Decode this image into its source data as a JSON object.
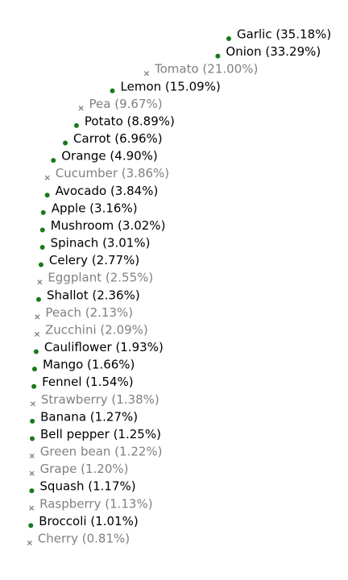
{
  "chart_data": {
    "type": "scatter",
    "title": "",
    "xlabel": "",
    "ylabel": "",
    "grid": false,
    "legend": "none",
    "colors": {
      "active_marker": "#1a7a1a",
      "inactive_marker": "#7f7f7f",
      "active_text": "#000000",
      "inactive_text": "#808080"
    },
    "items": [
      {
        "name": "Garlic",
        "percent_label": "(35.18%)",
        "value": 35.18,
        "marker": "dot"
      },
      {
        "name": "Onion",
        "percent_label": "(33.29%)",
        "value": 33.29,
        "marker": "dot"
      },
      {
        "name": "Tomato",
        "percent_label": "(21.00%)",
        "value": 21.0,
        "marker": "x"
      },
      {
        "name": "Lemon",
        "percent_label": "(15.09%)",
        "value": 15.09,
        "marker": "dot"
      },
      {
        "name": "Pea",
        "percent_label": "(9.67%)",
        "value": 9.67,
        "marker": "x"
      },
      {
        "name": "Potato",
        "percent_label": "(8.89%)",
        "value": 8.89,
        "marker": "dot"
      },
      {
        "name": "Carrot",
        "percent_label": "(6.96%)",
        "value": 6.96,
        "marker": "dot"
      },
      {
        "name": "Orange",
        "percent_label": "(4.90%)",
        "value": 4.9,
        "marker": "dot"
      },
      {
        "name": "Cucumber",
        "percent_label": "(3.86%)",
        "value": 3.86,
        "marker": "x"
      },
      {
        "name": "Avocado",
        "percent_label": "(3.84%)",
        "value": 3.84,
        "marker": "dot"
      },
      {
        "name": "Apple",
        "percent_label": "(3.16%)",
        "value": 3.16,
        "marker": "dot"
      },
      {
        "name": "Mushroom",
        "percent_label": "(3.02%)",
        "value": 3.02,
        "marker": "dot"
      },
      {
        "name": "Spinach",
        "percent_label": "(3.01%)",
        "value": 3.01,
        "marker": "dot"
      },
      {
        "name": "Celery",
        "percent_label": "(2.77%)",
        "value": 2.77,
        "marker": "dot"
      },
      {
        "name": "Eggplant",
        "percent_label": "(2.55%)",
        "value": 2.55,
        "marker": "x"
      },
      {
        "name": "Shallot",
        "percent_label": "(2.36%)",
        "value": 2.36,
        "marker": "dot"
      },
      {
        "name": "Peach",
        "percent_label": "(2.13%)",
        "value": 2.13,
        "marker": "x"
      },
      {
        "name": "Zucchini",
        "percent_label": "(2.09%)",
        "value": 2.09,
        "marker": "x"
      },
      {
        "name": "Cauliflower",
        "percent_label": "(1.93%)",
        "value": 1.93,
        "marker": "dot"
      },
      {
        "name": "Mango",
        "percent_label": "(1.66%)",
        "value": 1.66,
        "marker": "dot"
      },
      {
        "name": "Fennel",
        "percent_label": "(1.54%)",
        "value": 1.54,
        "marker": "dot"
      },
      {
        "name": "Strawberry",
        "percent_label": "(1.38%)",
        "value": 1.38,
        "marker": "x"
      },
      {
        "name": "Banana",
        "percent_label": "(1.27%)",
        "value": 1.27,
        "marker": "dot"
      },
      {
        "name": "Bell pepper",
        "percent_label": "(1.25%)",
        "value": 1.25,
        "marker": "dot"
      },
      {
        "name": "Green bean",
        "percent_label": "(1.22%)",
        "value": 1.22,
        "marker": "x"
      },
      {
        "name": "Grape",
        "percent_label": "(1.20%)",
        "value": 1.2,
        "marker": "x"
      },
      {
        "name": "Squash",
        "percent_label": "(1.17%)",
        "value": 1.17,
        "marker": "dot"
      },
      {
        "name": "Raspberry",
        "percent_label": "(1.13%)",
        "value": 1.13,
        "marker": "x"
      },
      {
        "name": "Broccoli",
        "percent_label": "(1.01%)",
        "value": 1.01,
        "marker": "dot"
      },
      {
        "name": "Cherry",
        "percent_label": "(0.81%)",
        "value": 0.81,
        "marker": "x"
      }
    ]
  }
}
